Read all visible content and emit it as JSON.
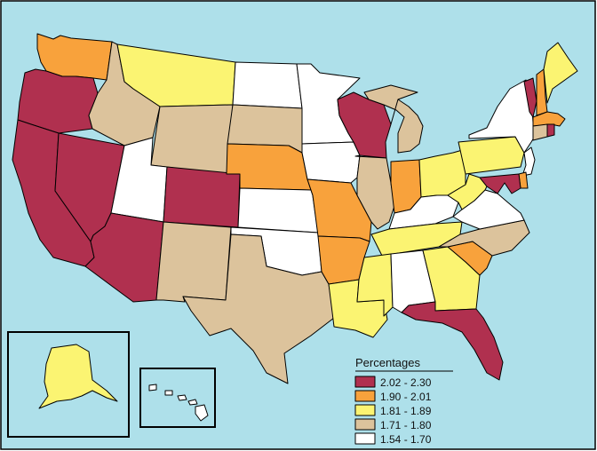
{
  "colors": {
    "water": "#aee0ea",
    "border": "#000000",
    "c1": "#b0304f",
    "c2": "#f8a23c",
    "c3": "#fbf472",
    "c4": "#dcc39c",
    "c5": "#ffffff"
  },
  "legend": {
    "title": "Percentages",
    "items": [
      {
        "label": "2.02 - 2.30",
        "color": "#b0304f"
      },
      {
        "label": "1.90 - 2.01",
        "color": "#f8a23c"
      },
      {
        "label": "1.81 - 1.89",
        "color": "#fbf472"
      },
      {
        "label": "1.71 - 1.80",
        "color": "#dcc39c"
      },
      {
        "label": "1.54 - 1.70",
        "color": "#ffffff"
      }
    ]
  },
  "states": {
    "WA": "c2",
    "OR": "c1",
    "CA": "c1",
    "NV": "c1",
    "ID": "c4",
    "MT": "c3",
    "WY": "c4",
    "UT": "c5",
    "AZ": "c1",
    "CO": "c1",
    "NM": "c4",
    "ND": "c5",
    "SD": "c4",
    "NE": "c2",
    "KS": "c5",
    "OK": "c5",
    "TX": "c4",
    "MN": "c5",
    "IA": "c5",
    "MO": "c2",
    "AR": "c2",
    "LA": "c3",
    "WI": "c1",
    "IL": "c4",
    "MI": "c4",
    "IN": "c2",
    "OH": "c3",
    "KY": "c5",
    "TN": "c3",
    "MS": "c3",
    "AL": "c5",
    "GA": "c3",
    "FL": "c1",
    "SC": "c2",
    "NC": "c4",
    "VA": "c5",
    "WV": "c3",
    "PA": "c3",
    "NY": "c5",
    "VT": "c1",
    "NH": "c2",
    "ME": "c3",
    "MA": "c2",
    "RI": "c1",
    "CT": "c4",
    "NJ": "c5",
    "DE": "c2",
    "MD": "c1",
    "AK": "c3",
    "HI": "c5"
  }
}
